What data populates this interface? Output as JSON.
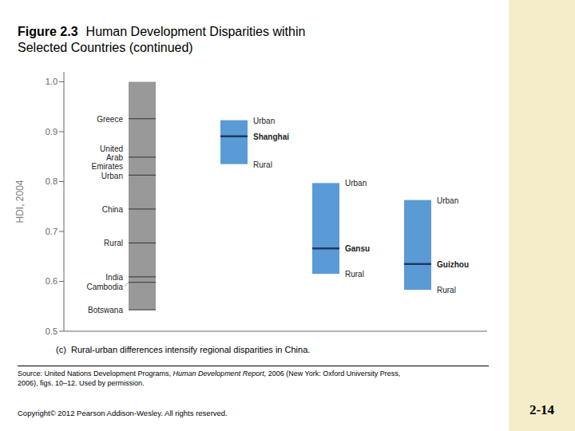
{
  "chart_data": {
    "type": "bar",
    "title": "Figure 2.3",
    "subtitle": "Human Development Disparities within Selected Countries (continued)",
    "y_label": "HDI, 2004",
    "ylim": [
      0.5,
      1.02
    ],
    "yticks": [
      0.5,
      0.6,
      0.7,
      0.8,
      0.9,
      {
        "value": 1.0,
        "label": "1.0"
      }
    ],
    "grid": false,
    "tick_labels": "y",
    "bars": [
      {
        "low": 0.543,
        "high": 1.0,
        "color": "#999999",
        "marks": [
          {
            "value": 0.926,
            "label": "Greece",
            "color": "#333333"
          },
          {
            "value": 0.849,
            "label": "United\nArab\nEmirates",
            "color": "#333333"
          },
          {
            "value": 0.813,
            "label": "Urban",
            "color": "#333333"
          },
          {
            "value": 0.745,
            "label": "China",
            "color": "#333333"
          },
          {
            "value": 0.677,
            "label": "Rural",
            "color": "#333333"
          },
          {
            "value": 0.609,
            "label": "India",
            "color": "#333333"
          },
          {
            "value": 0.598,
            "label": "Cambodia",
            "color": "#333333"
          },
          {
            "value": 0.543,
            "label": "Botswana",
            "color": "#333333"
          }
        ]
      },
      {
        "low": 0.835,
        "high": 0.923,
        "color": "#5B9BD5",
        "high_label": "Urban",
        "low_label": "Rural",
        "marks": [
          {
            "value": 0.891,
            "label": "Shanghai",
            "color": "#1F3864"
          }
        ]
      },
      {
        "low": 0.615,
        "high": 0.797,
        "color": "#5B9BD5",
        "high_label": "Urban",
        "low_label": "Rural",
        "marks": [
          {
            "value": 0.666,
            "label": "Gansu",
            "color": "#1F3864"
          }
        ]
      },
      {
        "low": 0.583,
        "high": 0.763,
        "color": "#5B9BD5",
        "high_label": "Urban",
        "low_label": "Rural",
        "marks": [
          {
            "value": 0.635,
            "label": "Guizhou",
            "color": "#1F3864"
          }
        ]
      }
    ],
    "caption": "(c)  Rural-urban differences intensify regional disparities in China.",
    "source": [
      "Source: United Nations Development Programs, ",
      "Human Development Report,",
      " 2006 (New York: Oxford University Press,",
      "2006), figs. 10–12. Used by permission."
    ],
    "copyright": "Copyright© 2012 Pearson Addison-Wesley. All rights reserved.",
    "page_number": "2-14",
    "background_color": "#FFFFFF",
    "cream_color": "#F5EDCA"
  }
}
